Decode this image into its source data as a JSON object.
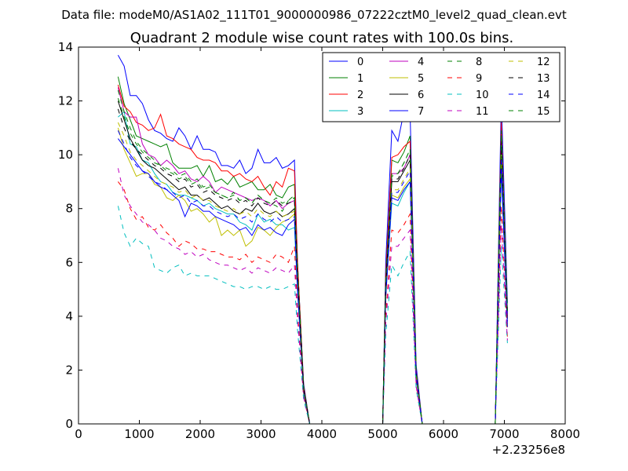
{
  "figure": {
    "suptitle": "Data file: modeM0/AS1A02_111T01_9000000986_07222cztM0_level2_quad_clean.evt"
  },
  "chart_data": {
    "type": "line",
    "title": "Quadrant 2 module wise count rates with 100.0s bins.",
    "xlabel": "",
    "ylabel": "",
    "x_offset_label": "+2.23256e8",
    "xlim": [
      0,
      8000
    ],
    "ylim": [
      0,
      14
    ],
    "xticks": [
      0,
      1000,
      2000,
      3000,
      4000,
      5000,
      6000,
      7000,
      8000
    ],
    "yticks": [
      0,
      2,
      4,
      6,
      8,
      10,
      12,
      14
    ],
    "grid": false,
    "legend": {
      "position": "top-right",
      "columns": 4
    },
    "x": [
      650,
      750,
      850,
      950,
      1050,
      1150,
      1250,
      1350,
      1450,
      1550,
      1650,
      1750,
      1850,
      1950,
      2050,
      2150,
      2250,
      2350,
      2450,
      2550,
      2650,
      2750,
      2850,
      2950,
      3050,
      3150,
      3250,
      3350,
      3450,
      3550,
      3600,
      3700,
      3800,
      3900,
      4000,
      4100,
      4200,
      4300,
      4400,
      4500,
      4600,
      4700,
      4800,
      4900,
      5000,
      5050,
      5150,
      5250,
      5350,
      5450,
      5550,
      5650,
      5750,
      5850,
      5950,
      6050,
      6150,
      6250,
      6350,
      6450,
      6550,
      6650,
      6750,
      6850,
      6950,
      7050
    ],
    "series": [
      {
        "name": "0",
        "color": "#0000ff",
        "dash": "solid",
        "values": [
          13.7,
          13.3,
          12.2,
          12.2,
          11.9,
          11.3,
          10.9,
          10.8,
          10.6,
          10.5,
          11.0,
          10.7,
          10.2,
          10.7,
          10.2,
          10.2,
          10.1,
          9.6,
          9.6,
          9.5,
          9.8,
          9.3,
          9.5,
          10.2,
          9.7,
          9.7,
          9.9,
          9.5,
          9.6,
          9.8,
          6.0,
          1.5,
          0.0,
          0.0,
          0.0,
          0.0,
          0.0,
          0.0,
          0.0,
          0.0,
          0.0,
          0.0,
          0.0,
          0.0,
          0.0,
          6.0,
          10.9,
          10.5,
          11.6,
          11.6,
          2.2,
          0.0,
          0.0,
          0.0,
          0.0,
          0.0,
          0.0,
          0.0,
          0.0,
          0.0,
          0.0,
          0.0,
          0.0,
          0.0,
          12.1,
          4.5
        ]
      },
      {
        "name": "1",
        "color": "#008000",
        "dash": "solid",
        "values": [
          12.9,
          11.9,
          11.3,
          10.7,
          10.6,
          10.5,
          10.4,
          10.3,
          10.4,
          9.7,
          9.5,
          9.5,
          9.5,
          9.6,
          9.2,
          9.6,
          9.0,
          9.1,
          8.9,
          9.2,
          8.8,
          8.9,
          9.0,
          8.7,
          8.7,
          8.9,
          8.5,
          8.4,
          8.8,
          8.9,
          6.0,
          1.4,
          0.0,
          0.0,
          0.0,
          0.0,
          0.0,
          0.0,
          0.0,
          0.0,
          0.0,
          0.0,
          0.0,
          0.0,
          0.0,
          5.5,
          9.8,
          9.7,
          10.1,
          10.7,
          2.0,
          0.0,
          0.0,
          0.0,
          0.0,
          0.0,
          0.0,
          0.0,
          0.0,
          0.0,
          0.0,
          0.0,
          0.0,
          0.0,
          11.0,
          4.2
        ]
      },
      {
        "name": "2",
        "color": "#ff0000",
        "dash": "solid",
        "values": [
          12.6,
          11.8,
          11.6,
          11.2,
          11.1,
          10.9,
          11.0,
          11.5,
          10.7,
          10.6,
          10.4,
          10.3,
          10.2,
          9.9,
          9.8,
          9.8,
          9.7,
          9.4,
          9.4,
          9.2,
          9.3,
          9.1,
          9.0,
          9.2,
          8.8,
          8.5,
          9.0,
          8.8,
          9.5,
          9.4,
          6.0,
          1.4,
          0.0,
          0.0,
          0.0,
          0.0,
          0.0,
          0.0,
          0.0,
          0.0,
          0.0,
          0.0,
          0.0,
          0.0,
          0.0,
          5.5,
          9.9,
          10.0,
          10.3,
          10.5,
          2.0,
          0.0,
          0.0,
          0.0,
          0.0,
          0.0,
          0.0,
          0.0,
          0.0,
          0.0,
          0.0,
          0.0,
          0.0,
          0.0,
          11.2,
          4.0
        ]
      },
      {
        "name": "3",
        "color": "#00bfbf",
        "dash": "solid",
        "values": [
          11.4,
          11.6,
          10.4,
          10.3,
          9.8,
          9.7,
          9.3,
          9.0,
          8.9,
          8.6,
          8.5,
          8.5,
          8.4,
          8.3,
          8.1,
          8.2,
          8.0,
          7.9,
          7.8,
          7.8,
          7.5,
          7.4,
          7.2,
          7.8,
          7.5,
          7.6,
          7.4,
          7.4,
          7.2,
          7.3,
          4.9,
          1.2,
          0.0,
          0.0,
          0.0,
          0.0,
          0.0,
          0.0,
          0.0,
          0.0,
          0.0,
          0.0,
          0.0,
          0.0,
          0.0,
          4.7,
          8.2,
          8.1,
          8.6,
          9.0,
          1.7,
          0.0,
          0.0,
          0.0,
          0.0,
          0.0,
          0.0,
          0.0,
          0.0,
          0.0,
          0.0,
          0.0,
          0.0,
          0.0,
          9.4,
          3.6
        ]
      },
      {
        "name": "4",
        "color": "#bf00bf",
        "dash": "solid",
        "values": [
          12.5,
          11.6,
          11.4,
          11.4,
          10.4,
          10.0,
          9.9,
          9.6,
          9.8,
          9.6,
          9.3,
          9.4,
          9.1,
          9.0,
          9.2,
          9.0,
          8.6,
          8.8,
          8.7,
          8.6,
          8.5,
          8.4,
          8.3,
          8.4,
          8.3,
          8.1,
          8.3,
          8.0,
          8.2,
          8.3,
          5.6,
          1.3,
          0.0,
          0.0,
          0.0,
          0.0,
          0.0,
          0.0,
          0.0,
          0.0,
          0.0,
          0.0,
          0.0,
          0.0,
          0.0,
          5.2,
          9.3,
          9.3,
          9.5,
          10.0,
          1.9,
          0.0,
          0.0,
          0.0,
          0.0,
          0.0,
          0.0,
          0.0,
          0.0,
          0.0,
          0.0,
          0.0,
          0.0,
          0.0,
          10.6,
          4.1
        ]
      },
      {
        "name": "5",
        "color": "#bfbf00",
        "dash": "solid",
        "values": [
          11.0,
          10.2,
          9.7,
          9.2,
          9.3,
          9.3,
          8.9,
          8.8,
          8.4,
          8.3,
          8.5,
          8.3,
          7.9,
          8.0,
          7.8,
          7.5,
          7.7,
          7.0,
          7.2,
          7.0,
          7.2,
          6.6,
          6.8,
          7.3,
          7.2,
          7.0,
          7.3,
          7.5,
          7.6,
          7.8,
          5.1,
          1.1,
          0.0,
          0.0,
          0.0,
          0.0,
          0.0,
          0.0,
          0.0,
          0.0,
          0.0,
          0.0,
          0.0,
          0.0,
          0.0,
          4.8,
          8.5,
          8.4,
          8.8,
          9.1,
          1.8,
          0.0,
          0.0,
          0.0,
          0.0,
          0.0,
          0.0,
          0.0,
          0.0,
          0.0,
          0.0,
          0.0,
          0.0,
          0.0,
          9.7,
          3.7
        ]
      },
      {
        "name": "6",
        "color": "#000000",
        "dash": "solid",
        "values": [
          12.0,
          11.3,
          10.6,
          10.2,
          9.8,
          9.6,
          9.5,
          9.3,
          9.1,
          8.9,
          8.7,
          8.8,
          8.5,
          8.5,
          8.3,
          8.4,
          8.2,
          8.0,
          8.1,
          7.9,
          7.8,
          8.0,
          7.9,
          8.2,
          7.9,
          7.8,
          7.9,
          7.7,
          7.8,
          8.0,
          5.4,
          1.3,
          0.0,
          0.0,
          0.0,
          0.0,
          0.0,
          0.0,
          0.0,
          0.0,
          0.0,
          0.0,
          0.0,
          0.0,
          0.0,
          5.0,
          9.0,
          9.0,
          9.4,
          9.8,
          1.9,
          0.0,
          0.0,
          0.0,
          0.0,
          0.0,
          0.0,
          0.0,
          0.0,
          0.0,
          0.0,
          0.0,
          0.0,
          0.0,
          10.3,
          3.9
        ]
      },
      {
        "name": "7",
        "color": "#0000ff",
        "dash": "solid",
        "values": [
          10.6,
          10.3,
          10.0,
          9.7,
          9.4,
          9.3,
          9.0,
          8.8,
          8.7,
          8.5,
          8.3,
          7.7,
          8.2,
          8.1,
          7.9,
          7.9,
          7.7,
          7.6,
          7.5,
          7.4,
          7.2,
          7.3,
          7.0,
          7.4,
          7.2,
          7.3,
          7.1,
          7.0,
          7.4,
          7.6,
          5.0,
          1.2,
          0.0,
          0.0,
          0.0,
          0.0,
          0.0,
          0.0,
          0.0,
          0.0,
          0.0,
          0.0,
          0.0,
          0.0,
          0.0,
          4.7,
          8.4,
          8.3,
          8.7,
          9.0,
          1.7,
          0.0,
          0.0,
          0.0,
          0.0,
          0.0,
          0.0,
          0.0,
          0.0,
          0.0,
          0.0,
          0.0,
          0.0,
          0.0,
          9.5,
          3.6
        ]
      },
      {
        "name": "8",
        "color": "#008000",
        "dash": "dashed",
        "values": [
          12.4,
          11.6,
          11.0,
          10.5,
          10.2,
          10.0,
          9.8,
          9.6,
          9.5,
          9.4,
          9.2,
          9.3,
          9.0,
          9.1,
          8.8,
          8.9,
          8.6,
          8.5,
          8.4,
          8.6,
          8.3,
          8.4,
          8.2,
          8.5,
          8.3,
          8.2,
          8.1,
          7.9,
          8.3,
          8.4,
          5.7,
          1.3,
          0.0,
          0.0,
          0.0,
          0.0,
          0.0,
          0.0,
          0.0,
          0.0,
          0.0,
          0.0,
          0.0,
          0.0,
          0.0,
          5.3,
          9.2,
          9.3,
          9.7,
          10.2,
          1.9,
          0.0,
          0.0,
          0.0,
          0.0,
          0.0,
          0.0,
          0.0,
          0.0,
          0.0,
          0.0,
          0.0,
          0.0,
          0.0,
          10.8,
          4.1
        ]
      },
      {
        "name": "9",
        "color": "#ff0000",
        "dash": "dashed",
        "values": [
          9.0,
          8.7,
          8.0,
          7.6,
          7.7,
          7.3,
          7.2,
          7.4,
          7.1,
          6.9,
          6.6,
          6.8,
          6.7,
          6.5,
          6.5,
          6.4,
          6.4,
          6.3,
          6.2,
          6.2,
          6.1,
          6.3,
          6.0,
          6.2,
          6.1,
          6.0,
          6.3,
          6.2,
          6.0,
          6.6,
          4.2,
          1.0,
          0.0,
          0.0,
          0.0,
          0.0,
          0.0,
          0.0,
          0.0,
          0.0,
          0.0,
          0.0,
          0.0,
          0.0,
          0.0,
          4.0,
          7.2,
          7.1,
          7.4,
          7.8,
          1.5,
          0.0,
          0.0,
          0.0,
          0.0,
          0.0,
          0.0,
          0.0,
          0.0,
          0.0,
          0.0,
          0.0,
          0.0,
          0.0,
          8.1,
          3.2
        ]
      },
      {
        "name": "10",
        "color": "#00bfbf",
        "dash": "dashed",
        "values": [
          8.1,
          7.1,
          6.6,
          6.9,
          6.7,
          6.6,
          5.8,
          5.7,
          5.6,
          5.8,
          5.9,
          5.5,
          5.6,
          5.5,
          5.5,
          5.5,
          5.4,
          5.3,
          5.2,
          5.1,
          5.1,
          5.0,
          5.1,
          5.1,
          5.0,
          5.1,
          5.0,
          5.0,
          5.1,
          5.2,
          3.5,
          0.9,
          0.0,
          0.0,
          0.0,
          0.0,
          0.0,
          0.0,
          0.0,
          0.0,
          0.0,
          0.0,
          0.0,
          0.0,
          0.0,
          3.3,
          5.9,
          5.5,
          6.0,
          6.4,
          1.3,
          0.0,
          0.0,
          0.0,
          0.0,
          0.0,
          0.0,
          0.0,
          0.0,
          0.0,
          0.0,
          0.0,
          0.0,
          0.0,
          6.6,
          3.0
        ]
      },
      {
        "name": "11",
        "color": "#bf00bf",
        "dash": "dashed",
        "values": [
          9.5,
          8.5,
          8.1,
          7.8,
          7.5,
          7.4,
          7.2,
          6.9,
          6.8,
          6.6,
          6.5,
          6.3,
          6.4,
          6.2,
          6.3,
          6.1,
          6.0,
          5.9,
          5.9,
          5.8,
          5.7,
          5.8,
          5.6,
          5.8,
          5.7,
          5.6,
          5.8,
          5.7,
          5.6,
          5.9,
          3.9,
          1.0,
          0.0,
          0.0,
          0.0,
          0.0,
          0.0,
          0.0,
          0.0,
          0.0,
          0.0,
          0.0,
          0.0,
          0.0,
          0.0,
          3.7,
          6.6,
          6.6,
          6.9,
          7.2,
          1.4,
          0.0,
          0.0,
          0.0,
          0.0,
          0.0,
          0.0,
          0.0,
          0.0,
          0.0,
          0.0,
          0.0,
          0.0,
          0.0,
          7.4,
          3.1
        ]
      },
      {
        "name": "12",
        "color": "#bfbf00",
        "dash": "dashed",
        "values": [
          11.2,
          10.7,
          10.1,
          9.8,
          9.6,
          9.4,
          9.2,
          9.0,
          8.9,
          8.8,
          8.6,
          8.7,
          8.4,
          8.5,
          8.3,
          8.3,
          8.1,
          8.0,
          7.9,
          8.0,
          7.8,
          7.9,
          7.7,
          8.0,
          7.8,
          7.7,
          7.9,
          7.7,
          7.8,
          7.9,
          5.3,
          1.2,
          0.0,
          0.0,
          0.0,
          0.0,
          0.0,
          0.0,
          0.0,
          0.0,
          0.0,
          0.0,
          0.0,
          0.0,
          0.0,
          4.9,
          8.7,
          8.7,
          9.1,
          9.5,
          1.8,
          0.0,
          0.0,
          0.0,
          0.0,
          0.0,
          0.0,
          0.0,
          0.0,
          0.0,
          0.0,
          0.0,
          0.0,
          0.0,
          10.0,
          3.8
        ]
      },
      {
        "name": "13",
        "color": "#000000",
        "dash": "dashed",
        "values": [
          11.7,
          11.0,
          10.5,
          10.2,
          10.0,
          9.8,
          9.6,
          9.5,
          9.3,
          9.2,
          9.0,
          9.1,
          8.8,
          8.9,
          8.6,
          8.7,
          8.5,
          8.4,
          8.3,
          8.4,
          8.2,
          8.3,
          8.1,
          8.4,
          8.2,
          8.1,
          8.3,
          8.1,
          8.2,
          8.3,
          5.6,
          1.3,
          0.0,
          0.0,
          0.0,
          0.0,
          0.0,
          0.0,
          0.0,
          0.0,
          0.0,
          0.0,
          0.0,
          0.0,
          0.0,
          5.2,
          9.1,
          9.1,
          9.5,
          10.0,
          1.9,
          0.0,
          0.0,
          0.0,
          0.0,
          0.0,
          0.0,
          0.0,
          0.0,
          0.0,
          0.0,
          0.0,
          0.0,
          0.0,
          10.5,
          4.0
        ]
      },
      {
        "name": "14",
        "color": "#0000ff",
        "dash": "dashed",
        "values": [
          10.9,
          10.4,
          9.9,
          9.6,
          9.4,
          9.2,
          9.0,
          8.9,
          8.7,
          8.6,
          8.4,
          8.5,
          8.2,
          8.3,
          8.1,
          8.1,
          7.9,
          7.8,
          7.7,
          7.8,
          7.6,
          7.7,
          7.5,
          7.8,
          7.6,
          7.5,
          7.7,
          7.5,
          7.6,
          7.7,
          5.2,
          1.2,
          0.0,
          0.0,
          0.0,
          0.0,
          0.0,
          0.0,
          0.0,
          0.0,
          0.0,
          0.0,
          0.0,
          0.0,
          0.0,
          4.9,
          8.6,
          8.6,
          9.0,
          9.4,
          1.8,
          0.0,
          0.0,
          0.0,
          0.0,
          0.0,
          0.0,
          0.0,
          0.0,
          0.0,
          0.0,
          0.0,
          0.0,
          0.0,
          9.9,
          3.8
        ]
      },
      {
        "name": "15",
        "color": "#008000",
        "dash": "dashed",
        "values": [
          12.1,
          11.4,
          10.8,
          10.4,
          10.1,
          9.9,
          9.7,
          9.6,
          9.4,
          9.3,
          9.1,
          9.2,
          8.9,
          9.0,
          8.7,
          8.8,
          8.6,
          8.5,
          8.4,
          8.5,
          8.3,
          8.4,
          8.2,
          8.5,
          8.3,
          8.2,
          8.4,
          8.2,
          8.3,
          8.5,
          5.7,
          1.3,
          0.0,
          0.0,
          0.0,
          0.0,
          0.0,
          0.0,
          0.0,
          0.0,
          0.0,
          0.0,
          0.0,
          0.0,
          0.0,
          5.3,
          9.3,
          9.3,
          9.7,
          10.2,
          1.9,
          0.0,
          0.0,
          0.0,
          0.0,
          0.0,
          0.0,
          0.0,
          0.0,
          0.0,
          0.0,
          0.0,
          0.0,
          0.0,
          10.9,
          4.2
        ]
      }
    ]
  }
}
